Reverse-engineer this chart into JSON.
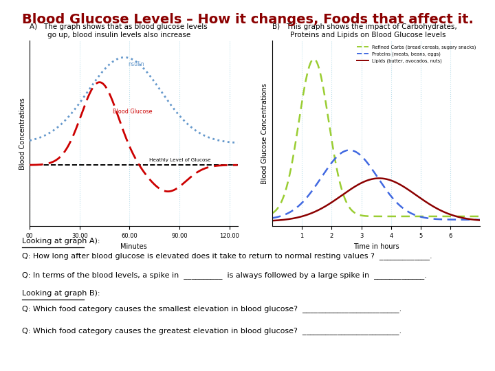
{
  "title": "Blood Glucose Levels – How it changes, Foods that affect it.",
  "title_color": "#8B0000",
  "title_fontsize": 14,
  "panel_A_title": "A)   The graph shows that as blood glucose levels\n        go up, blood insulin levels also increase",
  "panel_B_title": "B)   This graph shows the impact of Carbohydrates,\n        Proteins and Lipids on Blood Glucose levels",
  "panel_A_xlabel": "Minutes",
  "panel_A_ylabel": "Blood Concentrations",
  "panel_B_xlabel": "Time in hours",
  "panel_B_ylabel": "Blood Glucose Concentrations",
  "legend_B": [
    {
      "label": "Refined Carbs (bread cereals, sugary snacks)",
      "color": "#9ACD32",
      "ls": "dashed"
    },
    {
      "label": "Proteins (meats, beans, eggs)",
      "color": "#4169E1",
      "ls": "dashed"
    },
    {
      "label": "Lipids (butter, avocados, nuts)",
      "color": "#8B0000",
      "ls": "solid"
    }
  ],
  "questions": [
    {
      "underline": true,
      "text": "Looking at graph A):"
    },
    {
      "underline": false,
      "text": "Q: How long after blood glucose is elevated does it take to return to normal resting values ?  _____________."
    },
    {
      "underline": false,
      "text": ""
    },
    {
      "underline": false,
      "text": "Q: In terms of the blood levels, a spike in  __________  is always followed by a large spike in  _____________."
    },
    {
      "underline": false,
      "text": ""
    },
    {
      "underline": true,
      "text": "Looking at graph B):"
    },
    {
      "underline": false,
      "text": "Q: Which food category causes the smallest elevation in blood glucose?  _________________________."
    },
    {
      "underline": false,
      "text": ""
    },
    {
      "underline": false,
      "text": "Q: Which food category causes the greatest elevation in blood glucose?  _________________________."
    }
  ]
}
